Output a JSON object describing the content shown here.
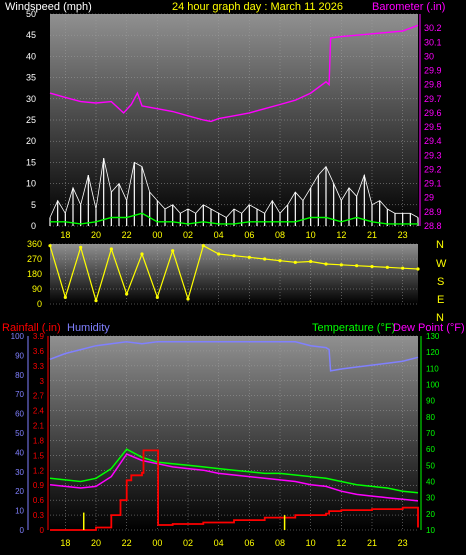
{
  "header": {
    "left_label": "Windspeed (mph)",
    "center_label": "24 hour graph day : March 11 2026",
    "right_label": "Barometer (.in)"
  },
  "hour_ticks": [
    "18",
    "20",
    "22",
    "00",
    "02",
    "04",
    "06",
    "08",
    "10",
    "12",
    "21",
    "23"
  ],
  "colors": {
    "background": "#000000",
    "gradient_top": "#909090",
    "gradient_bottom": "#000000",
    "grid": "#a0a0a0",
    "white_text": "#ffffff",
    "yellow": "#ffff00",
    "magenta": "#ff00ff",
    "red": "#ff0000",
    "green": "#00ff00",
    "blue": "#8080ff",
    "wind_white": "#ffffff",
    "wind_green": "#00ff00"
  },
  "direction_labels": [
    "N",
    "W",
    "S",
    "E",
    "N"
  ],
  "panel3": {
    "rainfall_label": "Rainfall (.in)",
    "humidity_label": "Humidity",
    "temperature_label": "Temperature (°F)",
    "dewpoint_label": "Dew Point (°F)"
  },
  "chart_data": [
    {
      "type": "line",
      "title": "24 hour graph day : March 11 2026",
      "x_ticks": [
        "18",
        "20",
        "22",
        "00",
        "02",
        "04",
        "06",
        "08",
        "10",
        "12",
        "21",
        "23"
      ],
      "x_range_hours": [
        17,
        41
      ],
      "left_axis": {
        "label": "Windspeed (mph)",
        "ylim": [
          0,
          50
        ],
        "ticks": [
          0,
          5,
          10,
          15,
          20,
          25,
          30,
          35,
          40,
          45,
          50
        ]
      },
      "right_axis": {
        "label": "Barometer (.in)",
        "ylim": [
          28.8,
          30.3
        ],
        "ticks": [
          28.8,
          28.9,
          29,
          29.1,
          29.2,
          29.3,
          29.4,
          29.5,
          29.6,
          29.7,
          29.8,
          29.9,
          30,
          30.1,
          30.2
        ]
      },
      "series": [
        {
          "name": "Barometer (.in)",
          "axis": "right",
          "color": "#ff00ff",
          "x": [
            17,
            18,
            19,
            20,
            21,
            21.8,
            22.3,
            22.7,
            23,
            23.5,
            24,
            25,
            26,
            27,
            27.5,
            28,
            29,
            30,
            31,
            32,
            33,
            34,
            35,
            35.2,
            35.3,
            36,
            37,
            38,
            39,
            40,
            41
          ],
          "y": [
            29.74,
            29.71,
            29.68,
            29.67,
            29.68,
            29.6,
            29.66,
            29.74,
            29.65,
            29.64,
            29.63,
            29.61,
            29.58,
            29.55,
            29.54,
            29.56,
            29.58,
            29.6,
            29.63,
            29.66,
            29.69,
            29.74,
            29.82,
            29.8,
            30.13,
            30.14,
            30.15,
            30.16,
            30.17,
            30.18,
            30.22
          ]
        },
        {
          "name": "Wind gust (mph)",
          "axis": "left",
          "color": "#ffffff",
          "x": [
            17,
            17.5,
            18,
            18.5,
            19,
            19.5,
            20,
            20.5,
            21,
            21.5,
            22,
            22.5,
            23,
            23.5,
            24,
            24.5,
            25,
            25.5,
            26,
            26.5,
            27,
            27.5,
            28,
            28.5,
            29,
            29.5,
            30,
            30.5,
            31,
            31.5,
            32,
            32.5,
            33,
            33.5,
            34,
            34.5,
            35,
            35.5,
            36,
            36.5,
            37,
            37.5,
            38,
            38.5,
            39,
            39.5,
            40,
            40.5,
            41
          ],
          "y": [
            2,
            6,
            3,
            9,
            5,
            12,
            4,
            16,
            8,
            10,
            6,
            15,
            14,
            8,
            6,
            4,
            5,
            3,
            4,
            3,
            5,
            4,
            3,
            2,
            4,
            3,
            5,
            4,
            3,
            6,
            3,
            5,
            8,
            6,
            9,
            12,
            14,
            10,
            6,
            9,
            7,
            12,
            5,
            6,
            4,
            3,
            3,
            3,
            2
          ]
        },
        {
          "name": "Wind average (mph)",
          "axis": "left",
          "color": "#00ff00",
          "x": [
            17,
            18,
            19,
            20,
            21,
            22,
            23,
            24,
            25,
            26,
            27,
            28,
            29,
            30,
            31,
            32,
            33,
            34,
            35,
            36,
            37,
            38,
            39,
            40,
            41
          ],
          "y": [
            1,
            1,
            0.5,
            1,
            2,
            2,
            3,
            1,
            1,
            0.5,
            1,
            0.5,
            0.5,
            1,
            1,
            1,
            1,
            2,
            2,
            1,
            2,
            1,
            0.5,
            0.5,
            0.5
          ]
        }
      ]
    },
    {
      "type": "scatter",
      "title": "",
      "x_ticks": [],
      "x_range_hours": [
        17,
        41
      ],
      "y_axis": {
        "label": "",
        "ylim": [
          0,
          360
        ],
        "ticks": [
          0,
          90,
          180,
          270,
          360
        ]
      },
      "series": [
        {
          "name": "Wind direction",
          "color": "#ffff00",
          "x": [
            17,
            18,
            19,
            20,
            21,
            22,
            23,
            24,
            25,
            26,
            27,
            28,
            29,
            30,
            31,
            32,
            33,
            34,
            35,
            36,
            37,
            38,
            39,
            40,
            41
          ],
          "y": [
            350,
            40,
            340,
            20,
            330,
            60,
            300,
            40,
            320,
            30,
            350,
            300,
            290,
            280,
            270,
            260,
            250,
            255,
            240,
            235,
            230,
            225,
            220,
            215,
            210
          ]
        }
      ]
    },
    {
      "type": "line",
      "title": "",
      "x_ticks": [
        "18",
        "20",
        "22",
        "00",
        "02",
        "04",
        "06",
        "08",
        "10",
        "12",
        "21",
        "23"
      ],
      "x_range_hours": [
        17,
        41
      ],
      "left_axis_rain": {
        "label": "Rainfall (.in)",
        "ylim": [
          0,
          3.9
        ],
        "ticks": [
          0,
          0.3,
          0.6,
          0.9,
          1.2,
          1.5,
          1.8,
          2.1,
          2.4,
          2.7,
          3,
          3.3,
          3.6,
          3.9
        ]
      },
      "left_axis_humidity": {
        "label": "Humidity",
        "ylim": [
          0,
          100
        ],
        "ticks": [
          0,
          10,
          20,
          30,
          40,
          50,
          60,
          70,
          80,
          90,
          100
        ]
      },
      "right_axis": {
        "label": "Temperature (°F) Dew Point (°F)",
        "ylim": [
          10,
          130
        ],
        "ticks": [
          10,
          20,
          30,
          40,
          50,
          60,
          70,
          80,
          90,
          100,
          110,
          120,
          130
        ]
      },
      "series": [
        {
          "name": "Humidity",
          "axis": "humidity",
          "color": "#8080ff",
          "x": [
            17,
            18,
            19,
            20,
            21,
            22,
            23,
            24,
            25,
            26,
            27,
            28,
            29,
            30,
            31,
            32,
            33,
            34,
            35,
            35.2,
            35.3,
            36,
            37,
            38,
            39,
            40,
            41
          ],
          "y": [
            88,
            91,
            93,
            95,
            96,
            97,
            96,
            97,
            97,
            97,
            97,
            97,
            97,
            97,
            97,
            97,
            97,
            95,
            94,
            93,
            82,
            83,
            84,
            85,
            86,
            87,
            89
          ]
        },
        {
          "name": "Temperature (°F)",
          "axis": "right",
          "color": "#00ff00",
          "x": [
            17,
            18,
            19,
            20,
            21,
            22,
            23,
            24,
            25,
            26,
            27,
            28,
            29,
            30,
            31,
            32,
            33,
            34,
            35,
            36,
            37,
            38,
            39,
            40,
            41
          ],
          "y": [
            42,
            41,
            40,
            42,
            48,
            60,
            55,
            52,
            51,
            50,
            49,
            48,
            47,
            46,
            45,
            45,
            44,
            43,
            42,
            40,
            38,
            37,
            36,
            34,
            33
          ]
        },
        {
          "name": "Dew Point (°F)",
          "axis": "right",
          "color": "#ff00ff",
          "x": [
            17,
            18,
            19,
            20,
            21,
            22,
            23,
            24,
            25,
            26,
            27,
            28,
            29,
            30,
            31,
            32,
            33,
            34,
            35,
            36,
            37,
            38,
            39,
            40,
            41
          ],
          "y": [
            38,
            37,
            36,
            37,
            43,
            57,
            53,
            51,
            49,
            48,
            47,
            45,
            44,
            43,
            42,
            41,
            40,
            38,
            37,
            34,
            32,
            31,
            30,
            29,
            28
          ]
        },
        {
          "name": "Rainfall (.in)",
          "axis": "rain",
          "color": "#ff0000",
          "x": [
            17,
            19,
            20,
            21,
            21.6,
            22,
            22.3,
            23,
            23.1,
            23.8,
            24,
            24.05,
            25,
            27,
            29,
            31,
            33,
            35,
            35.2,
            36,
            38,
            40,
            40.8,
            41
          ],
          "y": [
            0,
            0,
            0.05,
            0.3,
            0.6,
            1.0,
            1.1,
            1.15,
            1.6,
            1.6,
            1.6,
            0.1,
            0.12,
            0.15,
            0.2,
            0.25,
            0.3,
            0.33,
            0.38,
            0.4,
            0.42,
            0.45,
            0.45,
            0.05
          ]
        },
        {
          "name": "Rain rate",
          "axis": "rain",
          "color": "#ffff00",
          "x": [
            19.2,
            32.3
          ],
          "y": [
            0.35,
            0.3
          ]
        }
      ]
    }
  ]
}
